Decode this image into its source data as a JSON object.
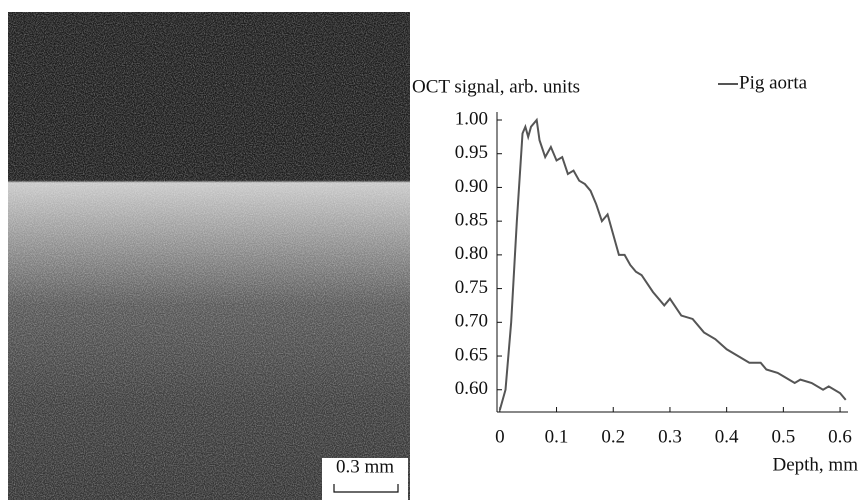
{
  "image": {
    "scale_bar": "0.3 mm"
  },
  "chart_data": {
    "type": "line",
    "y_label": "OCT signal, arb. units",
    "x_label": "Depth, mm",
    "x": [
      0.0,
      0.01,
      0.02,
      0.03,
      0.04,
      0.045,
      0.05,
      0.055,
      0.065,
      0.07,
      0.08,
      0.09,
      0.1,
      0.11,
      0.12,
      0.13,
      0.14,
      0.15,
      0.16,
      0.17,
      0.18,
      0.19,
      0.2,
      0.21,
      0.22,
      0.23,
      0.24,
      0.25,
      0.27,
      0.29,
      0.3,
      0.32,
      0.34,
      0.36,
      0.38,
      0.4,
      0.42,
      0.44,
      0.46,
      0.47,
      0.49,
      0.5,
      0.52,
      0.53,
      0.55,
      0.57,
      0.58,
      0.6,
      0.61
    ],
    "series": [
      {
        "name": "Pig aorta",
        "color": "#555555",
        "values": [
          0.57,
          0.6,
          0.7,
          0.85,
          0.98,
          0.99,
          0.975,
          0.99,
          1.0,
          0.97,
          0.945,
          0.96,
          0.94,
          0.945,
          0.92,
          0.925,
          0.91,
          0.905,
          0.895,
          0.875,
          0.85,
          0.86,
          0.83,
          0.8,
          0.8,
          0.785,
          0.775,
          0.77,
          0.745,
          0.725,
          0.735,
          0.71,
          0.705,
          0.685,
          0.675,
          0.66,
          0.65,
          0.64,
          0.64,
          0.63,
          0.625,
          0.62,
          0.61,
          0.615,
          0.61,
          0.6,
          0.605,
          0.595,
          0.585
        ]
      }
    ],
    "xlim": [
      -0.005,
      0.614
    ],
    "ylim": [
      0.567,
      1.0
    ],
    "xticks": [
      0,
      0.1,
      0.2,
      0.3,
      0.4,
      0.5,
      0.6
    ],
    "yticks": [
      {
        "value": 0.6,
        "label": "0.60"
      },
      0.65,
      {
        "value": 0.7,
        "label": "0.70"
      },
      0.75,
      {
        "value": 0.8,
        "label": "0.80"
      },
      0.85,
      {
        "value": 0.9,
        "label": "0.90"
      },
      0.95,
      {
        "value": 1.0,
        "label": "1.00"
      }
    ],
    "legend": "upper right"
  }
}
